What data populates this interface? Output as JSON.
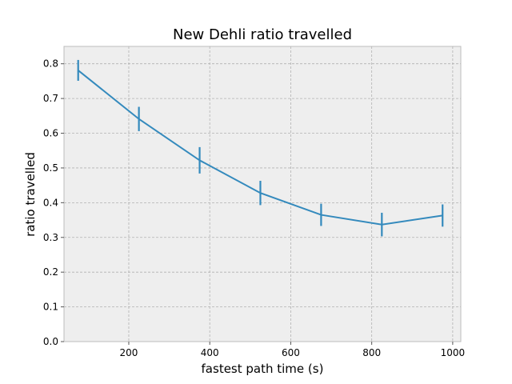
{
  "chart_data": {
    "type": "line",
    "title": "New Dehli ratio travelled",
    "xlabel": "fastest path time (s)",
    "ylabel": "ratio travelled",
    "xlim": [
      40,
      1020
    ],
    "ylim": [
      0.0,
      0.85
    ],
    "xticks": [
      200,
      400,
      600,
      800,
      1000
    ],
    "yticks": [
      0.0,
      0.1,
      0.2,
      0.3,
      0.4,
      0.5,
      0.6,
      0.7,
      0.8
    ],
    "grid": true,
    "series": [
      {
        "x": [
          75,
          225,
          375,
          525,
          675,
          825,
          975
        ],
        "y": [
          0.781,
          0.641,
          0.522,
          0.428,
          0.365,
          0.337,
          0.363
        ],
        "err": [
          0.03,
          0.035,
          0.038,
          0.035,
          0.032,
          0.034,
          0.032
        ]
      }
    ],
    "colors": {
      "line": "#348abd",
      "plot_bg": "#eeeeee",
      "grid": "#b2b2b2",
      "spine": "#bcbcbc"
    }
  }
}
